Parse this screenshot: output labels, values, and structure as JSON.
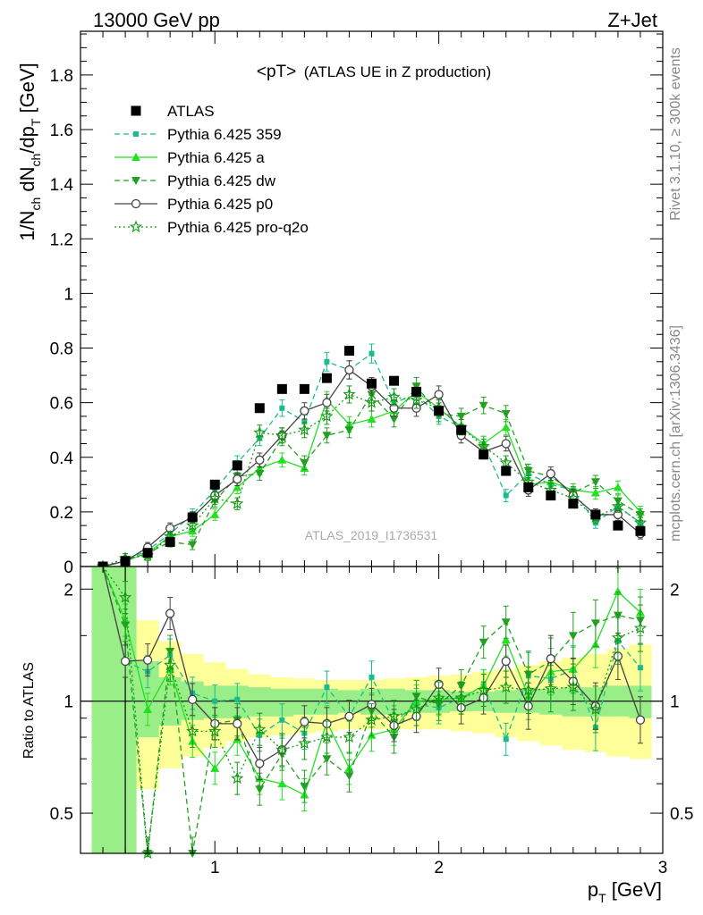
{
  "header": {
    "left": "13000 GeV pp",
    "right": "Z+Jet"
  },
  "side_labels": {
    "rivet": "Rivet 3.1.10, ≥ 300k events",
    "mcplots": "mcplots.cern.ch [arXiv:1306.3436]"
  },
  "analysis_label": "ATLAS_2019_I1736531",
  "chart_data": [
    {
      "type": "scatter",
      "title": "<pT> (ATLAS UE in Z production)",
      "title_main": "<pT>",
      "title_sub": "(ATLAS UE in Z production)",
      "ylabel": "1/N_ch dN_ch/dp_T [GeV]",
      "ylabel_main": "1/N",
      "ylabel_sub1": "ch",
      "ylabel_mid": " dN",
      "ylabel_sub2": "ch",
      "ylabel_mid2": "/dp",
      "ylabel_sub3": "T",
      "ylabel_end": " [GeV]",
      "xlim": [
        0.4,
        3.0
      ],
      "ylim": [
        0,
        1.96
      ],
      "yticks": [
        0,
        0.2,
        0.4,
        0.6,
        0.8,
        1,
        1.2,
        1.4,
        1.6,
        1.8
      ],
      "ytick_labels": [
        "0",
        "0.2",
        "0.4",
        "0.6",
        "0.8",
        "1",
        "1.2",
        "1.4",
        "1.6",
        "1.8"
      ],
      "legend_position": "top-left",
      "x": [
        0.5,
        0.6,
        0.7,
        0.8,
        0.9,
        1.0,
        1.1,
        1.2,
        1.3,
        1.4,
        1.5,
        1.6,
        1.7,
        1.8,
        1.9,
        2.0,
        2.1,
        2.2,
        2.3,
        2.4,
        2.5,
        2.6,
        2.7,
        2.8,
        2.9
      ],
      "series": [
        {
          "name": "ATLAS",
          "color": "#000000",
          "marker": "square",
          "line": "none",
          "values": [
            0.0,
            0.02,
            0.05,
            0.09,
            0.18,
            0.3,
            0.37,
            0.58,
            0.65,
            0.65,
            0.69,
            0.79,
            0.67,
            0.68,
            0.64,
            0.57,
            0.5,
            0.41,
            0.35,
            0.29,
            0.26,
            0.23,
            0.19,
            0.15,
            0.13
          ]
        },
        {
          "name": "Pythia 6.425 359",
          "color": "#1abc8c",
          "marker": "small-square",
          "line": "dashed",
          "values": [
            0.0,
            0.02,
            0.06,
            0.12,
            0.19,
            0.28,
            0.38,
            0.47,
            0.58,
            0.53,
            0.75,
            0.72,
            0.78,
            0.6,
            0.63,
            0.55,
            0.51,
            0.45,
            0.26,
            0.34,
            0.3,
            0.28,
            0.16,
            0.22,
            0.16
          ]
        },
        {
          "name": "Pythia 6.425 a",
          "color": "#22e022",
          "marker": "triangle-up",
          "line": "solid",
          "values": [
            0.0,
            0.02,
            0.05,
            0.11,
            0.13,
            0.19,
            0.29,
            0.36,
            0.39,
            0.36,
            0.61,
            0.52,
            0.54,
            0.57,
            0.64,
            0.58,
            0.51,
            0.45,
            0.51,
            0.3,
            0.31,
            0.28,
            0.27,
            0.29,
            0.2
          ]
        },
        {
          "name": "Pythia 6.425 dw",
          "color": "#22a022",
          "marker": "triangle-down",
          "line": "dashed",
          "values": [
            0.0,
            0.02,
            0.05,
            0.09,
            0.08,
            0.24,
            0.33,
            0.34,
            0.47,
            0.38,
            0.48,
            0.5,
            0.63,
            0.54,
            0.66,
            0.56,
            0.55,
            0.59,
            0.56,
            0.35,
            0.33,
            0.27,
            0.31,
            0.24,
            0.19
          ]
        },
        {
          "name": "Pythia 6.425 p0",
          "color": "#444444",
          "marker": "open-circle",
          "line": "solid",
          "values": [
            0.0,
            0.02,
            0.07,
            0.14,
            0.18,
            0.26,
            0.32,
            0.39,
            0.48,
            0.57,
            0.6,
            0.72,
            0.66,
            0.58,
            0.58,
            0.63,
            0.48,
            0.42,
            0.45,
            0.28,
            0.34,
            0.26,
            0.19,
            0.19,
            0.12
          ]
        },
        {
          "name": "Pythia 6.425 pro-q2o",
          "color": "#119911",
          "marker": "star",
          "line": "dotted",
          "values": [
            0.0,
            0.03,
            0.04,
            0.11,
            0.15,
            0.25,
            0.23,
            0.49,
            0.48,
            0.5,
            0.55,
            0.63,
            0.6,
            0.62,
            0.61,
            0.58,
            0.51,
            0.44,
            0.38,
            0.31,
            0.28,
            0.25,
            0.18,
            0.22,
            0.16
          ]
        }
      ]
    },
    {
      "type": "line",
      "title": "",
      "ylabel": "Ratio to ATLAS",
      "xlabel": "p_T [GeV]",
      "xlabel_main": "p",
      "xlabel_sub": "T",
      "xlabel_end": " [GeV]",
      "xlim": [
        0.4,
        3.0
      ],
      "ylim": [
        0.39,
        2.3
      ],
      "log_y": true,
      "xticks": [
        1,
        2,
        3
      ],
      "xtick_labels": [
        "1",
        "2",
        "3"
      ],
      "yticks": [
        0.5,
        1,
        2
      ],
      "ytick_labels": [
        "0.5",
        "1",
        "2"
      ],
      "reference_line": 1,
      "x": [
        0.5,
        0.6,
        0.7,
        0.8,
        0.9,
        1.0,
        1.1,
        1.2,
        1.3,
        1.4,
        1.5,
        1.6,
        1.7,
        1.8,
        1.9,
        2.0,
        2.1,
        2.2,
        2.3,
        2.4,
        2.5,
        2.6,
        2.7,
        2.8,
        2.9
      ],
      "bands": {
        "stat_lower": [
          0.39,
          0.39,
          0.8,
          0.86,
          0.89,
          0.9,
          0.9,
          0.91,
          0.91,
          0.92,
          0.92,
          0.93,
          0.92,
          0.92,
          0.93,
          0.93,
          0.94,
          0.94,
          0.93,
          0.93,
          0.92,
          0.91,
          0.91,
          0.91,
          0.9
        ],
        "stat_upper": [
          2.3,
          2.3,
          1.28,
          1.16,
          1.13,
          1.1,
          1.1,
          1.09,
          1.08,
          1.08,
          1.08,
          1.07,
          1.08,
          1.08,
          1.07,
          1.07,
          1.06,
          1.06,
          1.07,
          1.08,
          1.08,
          1.09,
          1.09,
          1.1,
          1.1
        ],
        "total_lower": [
          0.39,
          0.39,
          0.58,
          0.66,
          0.71,
          0.75,
          0.78,
          0.8,
          0.81,
          0.82,
          0.83,
          0.84,
          0.84,
          0.84,
          0.84,
          0.84,
          0.83,
          0.82,
          0.8,
          0.78,
          0.76,
          0.74,
          0.73,
          0.71,
          0.7
        ],
        "total_upper": [
          2.3,
          2.05,
          1.65,
          1.45,
          1.34,
          1.27,
          1.22,
          1.18,
          1.16,
          1.15,
          1.14,
          1.14,
          1.14,
          1.15,
          1.16,
          1.17,
          1.18,
          1.2,
          1.22,
          1.25,
          1.28,
          1.31,
          1.34,
          1.38,
          1.42
        ]
      },
      "series": [
        {
          "name": "Pythia 6.425 359",
          "color": "#1abc8c",
          "line": "dashed",
          "values": [
            2.4,
            1.28,
            1.2,
            1.33,
            1.05,
            1.0,
            1.01,
            0.81,
            0.89,
            0.82,
            1.09,
            0.91,
            1.16,
            0.88,
            0.98,
            0.96,
            1.02,
            1.1,
            0.79,
            1.17,
            1.15,
            1.21,
            0.85,
            1.45,
            1.23
          ]
        },
        {
          "name": "Pythia 6.425 a",
          "color": "#22e022",
          "line": "solid",
          "values": [
            2.4,
            1.65,
            0.95,
            1.22,
            0.78,
            0.66,
            0.79,
            0.62,
            0.6,
            0.56,
            0.88,
            0.66,
            0.81,
            0.84,
            1.0,
            1.01,
            1.02,
            1.1,
            1.46,
            1.03,
            1.2,
            1.22,
            1.42,
            1.97,
            1.73
          ]
        },
        {
          "name": "Pythia 6.425 dw",
          "color": "#22a022",
          "line": "dashed",
          "values": [
            2.4,
            1.6,
            0.38,
            1.36,
            0.37,
            0.87,
            0.89,
            0.58,
            0.72,
            0.59,
            0.7,
            0.63,
            0.94,
            0.8,
            1.03,
            0.98,
            1.1,
            1.44,
            1.63,
            1.18,
            1.28,
            1.5,
            1.62,
            1.7,
            1.65
          ]
        },
        {
          "name": "Pythia 6.425 p0",
          "color": "#444444",
          "line": "solid",
          "values": [
            2.4,
            1.28,
            1.29,
            1.72,
            1.01,
            0.87,
            0.87,
            0.68,
            0.74,
            0.88,
            0.87,
            0.91,
            0.98,
            0.86,
            0.91,
            1.11,
            0.96,
            1.02,
            1.28,
            0.97,
            1.3,
            1.13,
            0.97,
            1.32,
            0.89
          ]
        },
        {
          "name": "Pythia 6.425 pro-q2o",
          "color": "#119911",
          "line": "dotted",
          "values": [
            2.4,
            1.9,
            0.37,
            1.25,
            0.83,
            0.83,
            0.62,
            0.84,
            0.74,
            0.77,
            0.8,
            0.8,
            0.89,
            0.91,
            0.95,
            1.02,
            1.02,
            1.07,
            1.09,
            1.07,
            1.08,
            1.09,
            0.95,
            1.48,
            1.57
          ]
        }
      ]
    }
  ]
}
